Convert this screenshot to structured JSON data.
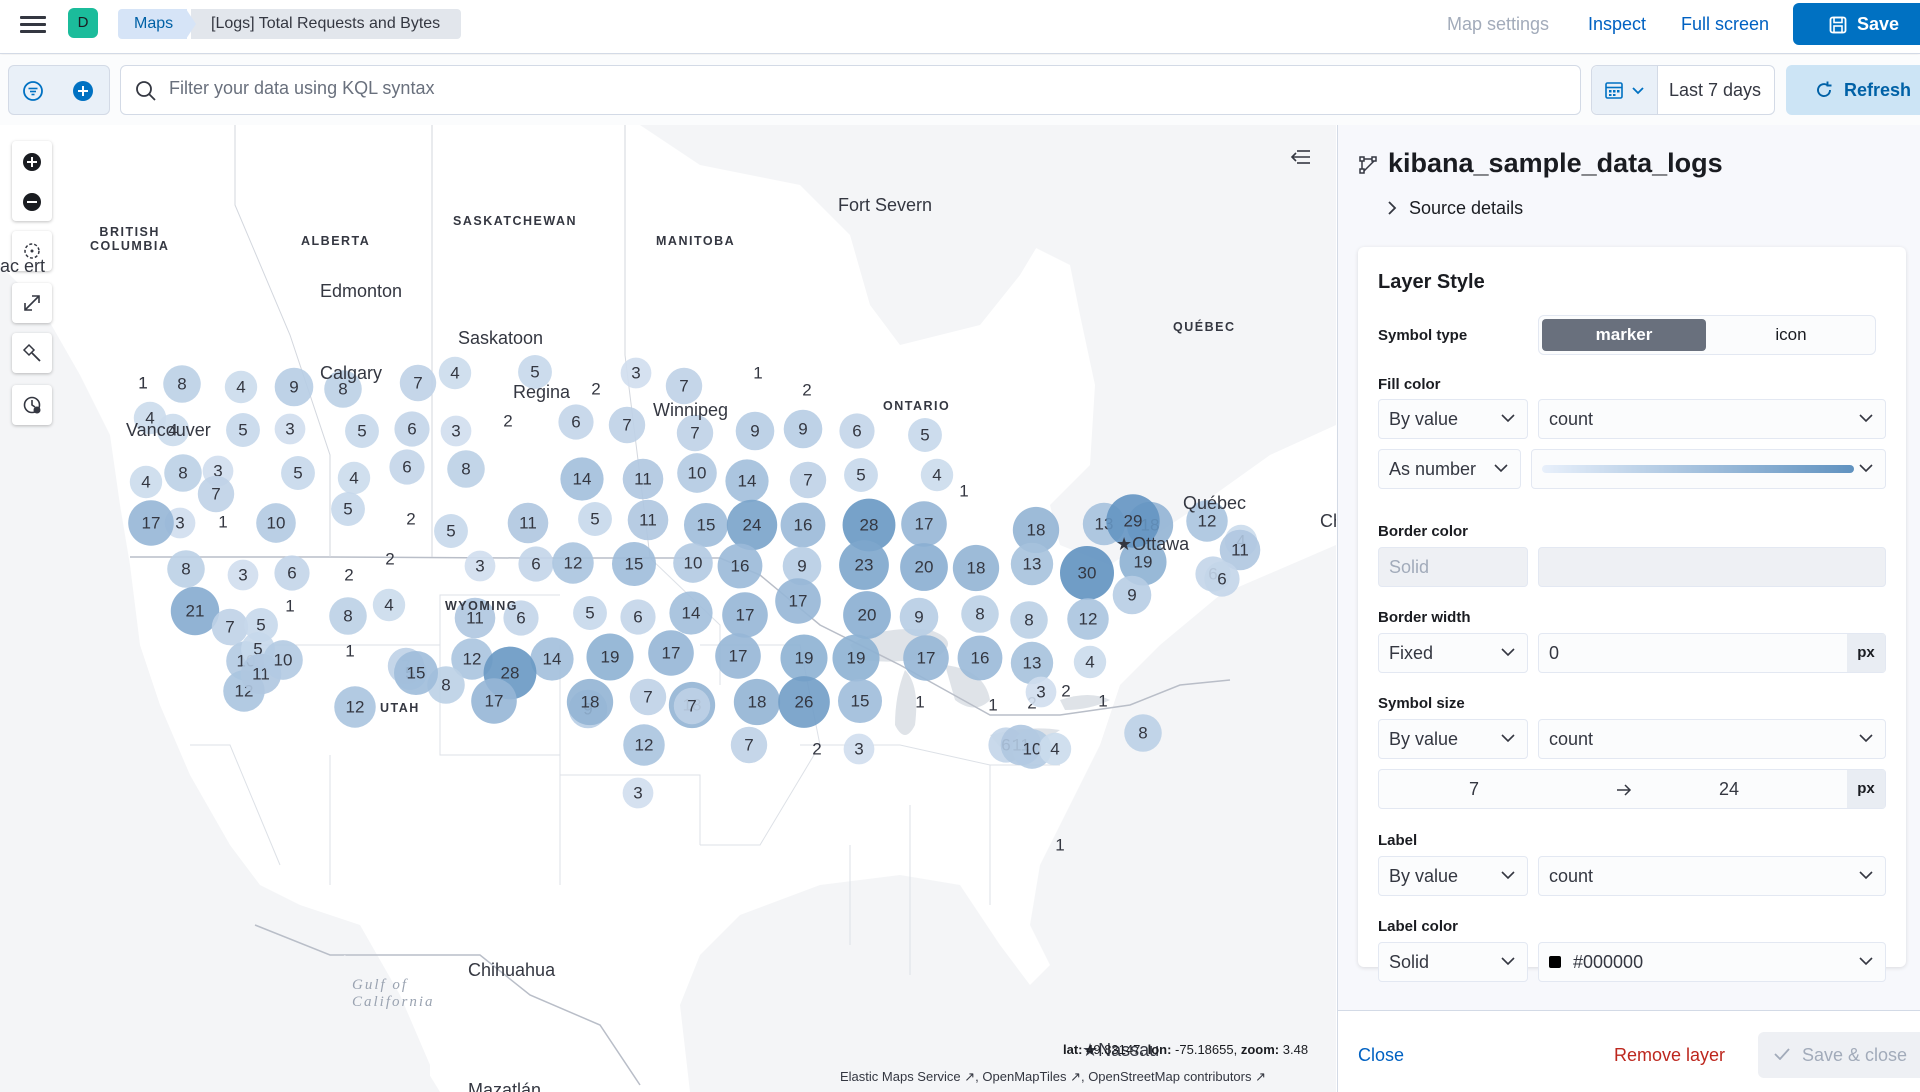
{
  "header": {
    "space_initial": "D",
    "breadcrumb_app": "Maps",
    "breadcrumb_page": "[Logs] Total Requests and Bytes",
    "map_settings": "Map settings",
    "inspect": "Inspect",
    "full_screen": "Full screen",
    "save": "Save"
  },
  "query": {
    "placeholder": "Filter your data using KQL syntax",
    "time_range": "Last 7 days",
    "refresh": "Refresh"
  },
  "map": {
    "labels": {
      "british_columbia": "BRITISH\nCOLUMBIA",
      "alberta": "ALBERTA",
      "saskatchewan": "SASKATCHEWAN",
      "manitoba": "MANITOBA",
      "ontario": "ONTARIO",
      "quebec_prov": "QUÉBEC",
      "wyoming": "WYOMING",
      "utah": "UTAH",
      "fort_severn": "Fort Severn",
      "edmonton": "Edmonton",
      "saskatoon": "Saskatoon",
      "calgary": "Calgary",
      "regina": "Regina",
      "winnipeg": "Winnipeg",
      "vancouver": "Vancouver",
      "quebec_city": "Québec",
      "ottawa": "★Ottawa",
      "chihuahua": "Chihuahua",
      "nassau": "★Nassau",
      "mazatlan": "Mazatlán",
      "partial_west": "ac ert",
      "partial_east": "Ch",
      "gulf": "Gulf of\nCalifornia"
    },
    "coords_lat_label": "lat:",
    "coords_lat": "49.83147",
    "coords_lon_label": "lon:",
    "coords_lon": "-75.18655",
    "coords_zoom_label": "zoom:",
    "coords_zoom": "3.48",
    "attribution": [
      "Elastic Maps Service",
      "OpenMapTiles",
      "OpenStreetMap contributors"
    ]
  },
  "panel": {
    "layer_name": "kibana_sample_data_logs",
    "source_details": "Source details",
    "card_title": "Layer Style",
    "symbol_type_label": "Symbol type",
    "symbol_marker": "marker",
    "symbol_icon": "icon",
    "fill_color_label": "Fill color",
    "fill_by": "By value",
    "fill_field": "count",
    "fill_as": "As number",
    "border_color_label": "Border color",
    "border_color_mode": "Solid",
    "border_width_label": "Border width",
    "border_width_mode": "Fixed",
    "border_width_value": "0",
    "px": "px",
    "symbol_size_label": "Symbol size",
    "size_by": "By value",
    "size_field": "count",
    "size_min": "7",
    "size_max": "24",
    "label_label": "Label",
    "label_by": "By value",
    "label_field": "count",
    "label_color_label": "Label color",
    "label_color_mode": "Solid",
    "label_color_value": "#000000",
    "colors": {
      "ramp_start": "#e8f0fb",
      "ramp_end": "#6092c0",
      "swatch": "#000000"
    },
    "close": "Close",
    "remove_layer": "Remove layer",
    "save_close": "Save & close"
  },
  "cluster_counts": [
    1,
    8,
    4,
    9,
    8,
    7,
    4,
    5,
    2,
    3,
    7,
    1,
    2,
    4,
    4,
    5,
    3,
    5,
    6,
    3,
    2,
    6,
    7,
    7,
    9,
    9,
    6,
    5,
    8,
    4,
    3,
    5,
    4,
    6,
    8,
    14,
    11,
    10,
    14,
    7,
    5,
    4,
    1,
    7,
    3,
    1,
    10,
    5,
    2,
    5,
    11,
    5,
    11,
    15,
    24,
    16,
    28,
    17,
    18,
    13,
    18,
    12,
    4,
    17,
    8,
    3,
    6,
    2,
    2,
    3,
    6,
    12,
    15,
    10,
    16,
    9,
    23,
    20,
    18,
    13,
    30,
    19,
    29,
    21,
    7,
    1,
    8,
    4,
    11,
    6,
    5,
    6,
    14,
    17,
    17,
    20,
    9,
    8,
    8,
    12,
    9,
    11,
    6,
    6,
    10,
    5,
    1,
    7,
    12,
    14,
    19,
    17,
    17,
    19,
    19,
    17,
    16,
    13,
    4,
    12,
    11,
    5,
    8,
    28,
    9,
    18,
    18,
    18,
    26,
    15,
    1,
    1,
    2,
    3,
    2,
    5,
    10,
    12,
    15,
    17,
    12,
    7,
    7,
    2,
    3,
    6,
    11,
    10,
    4,
    7,
    3,
    8,
    1,
    1,
    1
  ]
}
